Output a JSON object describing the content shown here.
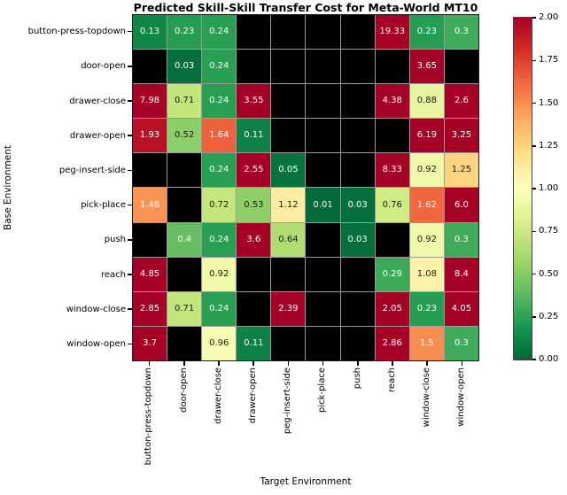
{
  "title": "Predicted Skill-Skill Transfer Cost for Meta-World MT10",
  "chart_data": {
    "type": "heatmap",
    "title": "Predicted Skill-Skill Transfer Cost for Meta-World MT10",
    "xlabel": "Target Environment",
    "ylabel": "Base Environment",
    "rows": [
      "button-press-topdown",
      "door-open",
      "drawer-close",
      "drawer-open",
      "peg-insert-side",
      "pick-place",
      "push",
      "reach",
      "window-close",
      "window-open"
    ],
    "cols": [
      "button-press-topdown",
      "door-open",
      "drawer-close",
      "drawer-open",
      "peg-insert-side",
      "pick-place",
      "push",
      "reach",
      "window-close",
      "window-open"
    ],
    "values": [
      [
        "0.13",
        "0.23",
        "0.24",
        null,
        null,
        null,
        null,
        "19.33",
        "0.23",
        "0.3"
      ],
      [
        null,
        "0.03",
        "0.24",
        null,
        null,
        null,
        null,
        null,
        "3.65",
        null
      ],
      [
        "7.98",
        "0.71",
        "0.24",
        "3.55",
        null,
        null,
        null,
        "4.38",
        "0.88",
        "2.6"
      ],
      [
        "1.93",
        "0.52",
        "1.64",
        "0.11",
        null,
        null,
        null,
        null,
        "6.19",
        "3.25"
      ],
      [
        null,
        null,
        "0.24",
        "2.55",
        "0.05",
        null,
        null,
        "8.33",
        "0.92",
        "1.25"
      ],
      [
        "1.48",
        null,
        "0.72",
        "0.53",
        "1.12",
        "0.01",
        "0.03",
        "0.76",
        "1.62",
        "6.0"
      ],
      [
        null,
        "0.4",
        "0.24",
        "3.6",
        "0.64",
        null,
        "0.03",
        null,
        "0.92",
        "0.3"
      ],
      [
        "4.85",
        null,
        "0.92",
        null,
        null,
        null,
        null,
        "0.29",
        "1.08",
        "8.4"
      ],
      [
        "2.85",
        "0.71",
        "0.24",
        null,
        "2.39",
        null,
        null,
        "2.05",
        "0.23",
        "4.05"
      ],
      [
        "3.7",
        null,
        "0.96",
        "0.11",
        null,
        null,
        null,
        "2.86",
        "1.5",
        "0.3"
      ]
    ],
    "vmin": 0,
    "vmax": 2,
    "colormap": "RdYlGn_r",
    "colormap_stops": [
      "#006837",
      "#1a9850",
      "#66bd63",
      "#a6d96a",
      "#d9ef8b",
      "#ffffbf",
      "#fee08b",
      "#fdae61",
      "#f46d43",
      "#d73027",
      "#a50026"
    ],
    "missing_color": "#000000",
    "gridline_color": "#9a9a9a",
    "annotation_light_text": "#ffffff",
    "annotation_dark_text": "#1a1a1a",
    "colorbar_ticks": [
      "2.00",
      "1.75",
      "1.50",
      "1.25",
      "1.00",
      "0.75",
      "0.50",
      "0.25",
      "0.00"
    ],
    "legend_position": "right",
    "grid": "on"
  }
}
